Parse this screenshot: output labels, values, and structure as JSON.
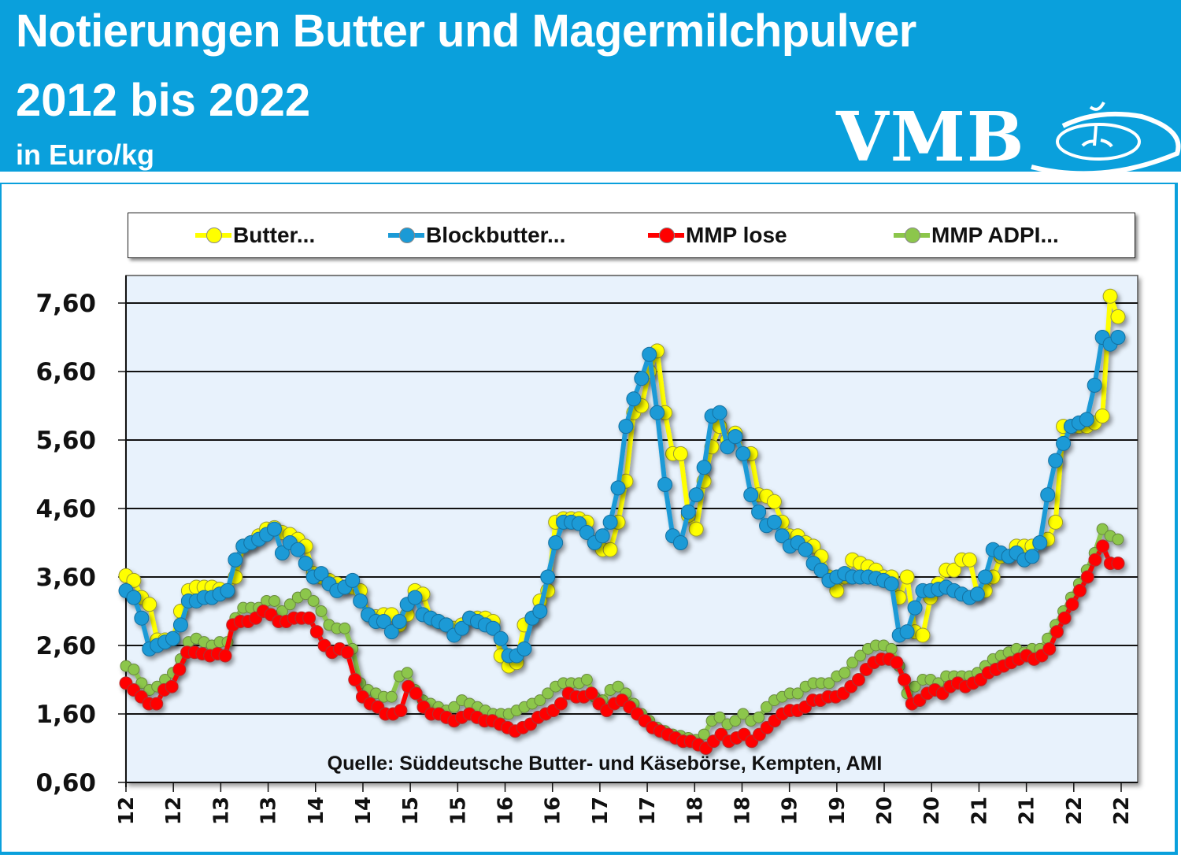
{
  "header": {
    "title_line1": "Notierungen Butter und Magermilchpulver",
    "title_line2": "2012 bis 2022",
    "unit": "in Euro/kg",
    "logo_text": "VMB",
    "background_color": "#0aa0dc"
  },
  "chart_data": {
    "type": "line",
    "title": "Notierungen Butter und Magermilchpulver 2012 bis 2022",
    "subtitle": "in Euro/kg",
    "xlabel": "",
    "ylabel": "Euro/kg",
    "ylim": [
      0.6,
      7.9
    ],
    "yticks": [
      "0,60",
      "1,60",
      "2,60",
      "3,60",
      "4,60",
      "5,60",
      "6,60",
      "7,60"
    ],
    "ytick_values": [
      0.6,
      1.6,
      2.6,
      3.6,
      4.6,
      5.6,
      6.6,
      7.6
    ],
    "xtick_labels": [
      "12",
      "12",
      "13",
      "13",
      "14",
      "14",
      "15",
      "15",
      "16",
      "16",
      "17",
      "17",
      "18",
      "18",
      "19",
      "19",
      "20",
      "20",
      "21",
      "21",
      "22",
      "22"
    ],
    "grid": "horizontal",
    "legend_position": "top",
    "source": "Quelle: Süddeutsche Butter- und Käsebörse, Kempten, AMI",
    "x_unit": "month index starting Jan 2012",
    "series": [
      {
        "name": "Butter...",
        "color": "#ffff00",
        "values": [
          3.62,
          3.55,
          3.3,
          3.2,
          2.68,
          2.68,
          2.7,
          3.1,
          3.4,
          3.45,
          3.45,
          3.45,
          3.42,
          3.4,
          3.6,
          4.05,
          4.1,
          4.2,
          4.3,
          4.32,
          4.25,
          4.22,
          4.15,
          4.05,
          3.65,
          3.6,
          3.55,
          3.5,
          3.45,
          3.45,
          3.4,
          3.05,
          3.02,
          3.05,
          3.05,
          2.9,
          3.05,
          3.4,
          3.35,
          3.0,
          2.95,
          2.9,
          2.85,
          2.9,
          3.0,
          3.0,
          3.0,
          2.95,
          2.45,
          2.3,
          2.35,
          2.9,
          3.0,
          3.25,
          3.4,
          4.4,
          4.45,
          4.45,
          4.45,
          4.4,
          4.1,
          4.0,
          4.0,
          4.4,
          5.0,
          6.0,
          6.1,
          6.6,
          6.9,
          6.0,
          5.4,
          5.4,
          4.5,
          4.3,
          5.0,
          5.5,
          5.8,
          5.6,
          5.7,
          5.4,
          5.4,
          4.8,
          4.78,
          4.7,
          4.4,
          4.2,
          4.2,
          4.1,
          4.05,
          3.9,
          3.6,
          3.4,
          3.6,
          3.85,
          3.8,
          3.75,
          3.7,
          3.6,
          3.6,
          3.3,
          3.6,
          2.8,
          2.75,
          3.3,
          3.5,
          3.7,
          3.7,
          3.85,
          3.85,
          3.35,
          3.4,
          3.6,
          3.9,
          3.9,
          4.05,
          4.05,
          4.05,
          4.1,
          4.15,
          4.4,
          5.8,
          5.8,
          5.8,
          5.8,
          5.85,
          5.95,
          7.7,
          7.4
        ]
      },
      {
        "name": "Blockbutter...",
        "color": "#1b9ad6",
        "values": [
          3.4,
          3.3,
          3.0,
          2.55,
          2.6,
          2.65,
          2.7,
          2.9,
          3.25,
          3.25,
          3.3,
          3.3,
          3.35,
          3.4,
          3.85,
          4.05,
          4.1,
          4.15,
          4.22,
          4.3,
          3.95,
          4.1,
          4.0,
          3.8,
          3.6,
          3.65,
          3.5,
          3.4,
          3.45,
          3.55,
          3.25,
          3.05,
          2.95,
          2.95,
          2.8,
          2.95,
          3.2,
          3.3,
          3.05,
          3.0,
          2.95,
          2.9,
          2.75,
          2.85,
          3.0,
          2.95,
          2.9,
          2.85,
          2.7,
          2.45,
          2.45,
          2.55,
          3.0,
          3.1,
          3.6,
          4.1,
          4.4,
          4.4,
          4.38,
          4.25,
          4.1,
          4.2,
          4.4,
          4.9,
          5.8,
          6.2,
          6.5,
          6.85,
          6.0,
          4.95,
          4.2,
          4.1,
          4.55,
          4.8,
          5.2,
          5.95,
          6.0,
          5.5,
          5.65,
          5.4,
          4.8,
          4.55,
          4.35,
          4.4,
          4.2,
          4.05,
          4.1,
          4.0,
          3.8,
          3.7,
          3.55,
          3.6,
          3.65,
          3.6,
          3.6,
          3.6,
          3.58,
          3.55,
          3.5,
          2.75,
          2.8,
          3.15,
          3.4,
          3.4,
          3.42,
          3.45,
          3.4,
          3.35,
          3.3,
          3.35,
          3.6,
          4.0,
          3.95,
          3.9,
          3.95,
          3.85,
          3.9,
          4.1,
          4.8,
          5.3,
          5.55,
          5.8,
          5.85,
          5.9,
          6.4,
          7.1,
          7.0,
          7.1
        ]
      },
      {
        "name": "MMP lose",
        "color": "#ff0000",
        "values": [
          2.05,
          1.95,
          1.85,
          1.75,
          1.75,
          1.95,
          2.0,
          2.25,
          2.5,
          2.5,
          2.48,
          2.45,
          2.48,
          2.45,
          2.9,
          2.95,
          2.95,
          3.0,
          3.1,
          3.05,
          2.95,
          2.95,
          3.0,
          3.0,
          3.0,
          2.8,
          2.6,
          2.5,
          2.55,
          2.5,
          2.1,
          1.85,
          1.75,
          1.7,
          1.6,
          1.6,
          1.65,
          2.0,
          1.9,
          1.7,
          1.6,
          1.6,
          1.55,
          1.5,
          1.55,
          1.6,
          1.55,
          1.5,
          1.5,
          1.45,
          1.4,
          1.35,
          1.4,
          1.45,
          1.55,
          1.6,
          1.65,
          1.75,
          1.9,
          1.85,
          1.85,
          1.9,
          1.75,
          1.65,
          1.75,
          1.8,
          1.7,
          1.6,
          1.5,
          1.4,
          1.35,
          1.3,
          1.25,
          1.2,
          1.2,
          1.15,
          1.1,
          1.2,
          1.3,
          1.2,
          1.25,
          1.3,
          1.2,
          1.3,
          1.4,
          1.5,
          1.6,
          1.65,
          1.65,
          1.7,
          1.8,
          1.8,
          1.85,
          1.85,
          1.9,
          2.0,
          2.1,
          2.25,
          2.35,
          2.4,
          2.4,
          2.35,
          2.1,
          1.75,
          1.8,
          1.9,
          1.95,
          1.9,
          2.0,
          2.05,
          2.0,
          2.05,
          2.1,
          2.2,
          2.25,
          2.3,
          2.35,
          2.4,
          2.45,
          2.4,
          2.45,
          2.55,
          2.8,
          3.0,
          3.2,
          3.4,
          3.6,
          3.85,
          4.05,
          3.8,
          3.8
        ]
      },
      {
        "name": "MMP ADPI...",
        "color": "#8cc64b",
        "values": [
          2.3,
          2.25,
          2.05,
          1.95,
          2.0,
          2.1,
          2.2,
          2.4,
          2.65,
          2.7,
          2.65,
          2.6,
          2.65,
          2.65,
          3.0,
          3.15,
          3.15,
          3.15,
          3.25,
          3.25,
          3.1,
          3.2,
          3.3,
          3.35,
          3.25,
          3.1,
          2.9,
          2.85,
          2.85,
          2.55,
          2.05,
          1.95,
          1.9,
          1.85,
          1.85,
          2.15,
          2.2,
          1.95,
          1.8,
          1.75,
          1.7,
          1.65,
          1.7,
          1.8,
          1.75,
          1.7,
          1.65,
          1.6,
          1.6,
          1.6,
          1.65,
          1.7,
          1.75,
          1.8,
          1.9,
          2.0,
          2.05,
          2.05,
          2.05,
          2.1,
          1.85,
          1.8,
          1.95,
          2.0,
          1.9,
          1.75,
          1.6,
          1.5,
          1.4,
          1.35,
          1.3,
          1.28,
          1.25,
          1.22,
          1.3,
          1.5,
          1.55,
          1.45,
          1.5,
          1.6,
          1.5,
          1.55,
          1.7,
          1.8,
          1.85,
          1.9,
          1.9,
          2.0,
          2.05,
          2.05,
          2.05,
          2.15,
          2.2,
          2.35,
          2.45,
          2.55,
          2.6,
          2.6,
          2.55,
          2.3,
          1.9,
          2.0,
          2.1,
          2.1,
          2.05,
          2.15,
          2.15,
          2.15,
          2.15,
          2.2,
          2.3,
          2.4,
          2.45,
          2.5,
          2.55,
          2.5,
          2.55,
          2.55,
          2.7,
          2.9,
          3.1,
          3.3,
          3.5,
          3.7,
          3.95,
          4.3,
          4.2,
          4.15
        ]
      }
    ]
  }
}
